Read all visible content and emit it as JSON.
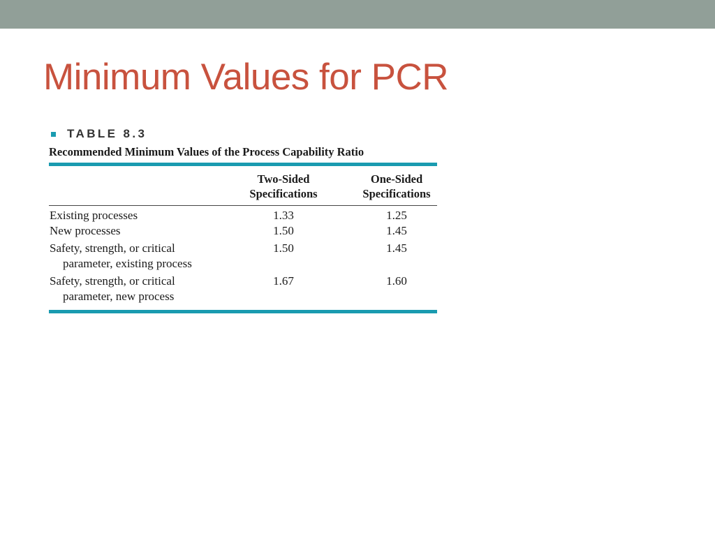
{
  "colors": {
    "top_bar": "#919f98",
    "title": "#c8523e",
    "accent_teal": "#1a9bb0"
  },
  "slide": {
    "title": "Minimum Values for PCR"
  },
  "table": {
    "label": "TABLE 8.3",
    "caption": "Recommended Minimum Values of the Process Capability Ratio",
    "columns": [
      {
        "line1": "Two-Sided",
        "line2": "Specifications"
      },
      {
        "line1": "One-Sided",
        "line2": "Specifications"
      }
    ],
    "rows": [
      {
        "label_line1": "Existing processes",
        "label_line2": "",
        "two_sided": "1.33",
        "one_sided": "1.25"
      },
      {
        "label_line1": "New processes",
        "label_line2": "",
        "two_sided": "1.50",
        "one_sided": "1.45"
      },
      {
        "label_line1": "Safety, strength, or critical",
        "label_line2": "parameter, existing process",
        "two_sided": "1.50",
        "one_sided": "1.45"
      },
      {
        "label_line1": "Safety, strength, or critical",
        "label_line2": "parameter, new process",
        "two_sided": "1.67",
        "one_sided": "1.60"
      }
    ]
  }
}
